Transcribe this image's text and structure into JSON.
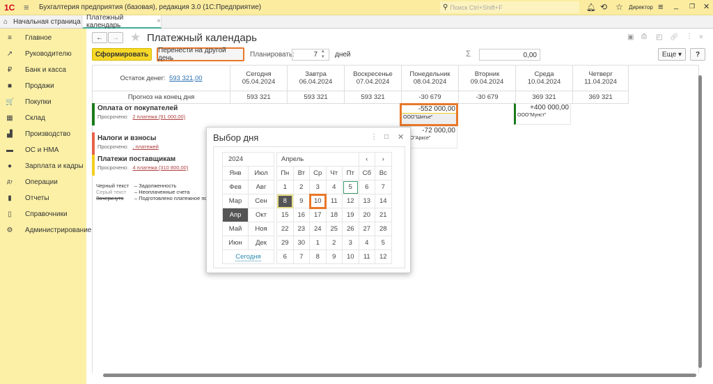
{
  "app": {
    "title": "Бухгалтерия предприятия (базовая), редакция 3.0  (1С:Предприятие)",
    "search_placeholder": "Поиск Ctrl+Shift+F",
    "user": "Директор"
  },
  "tabs": [
    {
      "label": "Начальная страница"
    },
    {
      "label": "Платежный календарь"
    }
  ],
  "sidebar": {
    "items": [
      {
        "label": "Главное",
        "icon": "≡"
      },
      {
        "label": "Руководителю",
        "icon": "↗"
      },
      {
        "label": "Банк и касса",
        "icon": "₽"
      },
      {
        "label": "Продажи",
        "icon": "■"
      },
      {
        "label": "Покупки",
        "icon": "🛒"
      },
      {
        "label": "Склад",
        "icon": "▦"
      },
      {
        "label": "Производство",
        "icon": "▟"
      },
      {
        "label": "ОС и НМА",
        "icon": "▬"
      },
      {
        "label": "Зарплата и кадры",
        "icon": "●"
      },
      {
        "label": "Операции",
        "icon": "Дт"
      },
      {
        "label": "Отчеты",
        "icon": "▮"
      },
      {
        "label": "Справочники",
        "icon": "▯"
      },
      {
        "label": "Администрирование",
        "icon": "⚙"
      }
    ]
  },
  "page": {
    "title": "Платежный календарь",
    "generate": "Сформировать",
    "move": "Перенести на другой день",
    "plan_label": "Планировать:",
    "plan_value": "7",
    "plan_unit": "дней",
    "sum_value": "0,00",
    "more": "Еще",
    "help": "?"
  },
  "table": {
    "balance_label": "Остаток денег:",
    "balance_value": "593 321,00",
    "forecast_label": "Прогноз на конец дня",
    "days": [
      {
        "name": "Сегодня",
        "date": "05.04.2024",
        "forecast": "593 321",
        "neg": false
      },
      {
        "name": "Завтра",
        "date": "06.04.2024",
        "forecast": "593 321",
        "neg": false
      },
      {
        "name": "Воскресенье",
        "date": "07.04.2024",
        "forecast": "593 321",
        "neg": false
      },
      {
        "name": "Понедельник",
        "date": "08.04.2024",
        "forecast": "-30 679",
        "neg": true
      },
      {
        "name": "Вторник",
        "date": "09.04.2024",
        "forecast": "-30 679",
        "neg": true
      },
      {
        "name": "Среда",
        "date": "10.04.2024",
        "forecast": "369 321",
        "neg": false
      },
      {
        "name": "Четверг",
        "date": "11.04.2024",
        "forecast": "369 321",
        "neg": false
      }
    ],
    "groups": [
      {
        "title": "Оплата от покупателей",
        "overdue_label": "Просрочено:",
        "overdue": "2 платежа (91 000,00)",
        "color": "#1a7a1a"
      },
      {
        "title": "Налоги и взносы",
        "overdue_label": "Просрочено:",
        "overdue": ", платежей",
        "color": "#e8614a"
      },
      {
        "title": "Платежи поставщикам",
        "overdue_label": "Просрочено:",
        "overdue": "4 платежа (310 800,00)",
        "color": "#f2cf1f"
      }
    ],
    "payments": [
      {
        "amount": "-552 000,00",
        "party": "ООО\"Шитье\""
      },
      {
        "amount": "-72 000,00",
        "party": "ООО\"Арксе\""
      },
      {
        "amount": "+400 000,00",
        "party": "ООО\"Мунст\""
      }
    ],
    "legend": [
      {
        "key": "Черный текст",
        "desc": "–  Задолженность"
      },
      {
        "key": "Серый текст",
        "desc": "–  Неоплаченные счета"
      },
      {
        "key": "Зачеркнуто",
        "desc": "–  Подготовлено платежное поруч"
      }
    ]
  },
  "dialog": {
    "title": "Выбор дня",
    "year": "2024",
    "month": "Апрель",
    "today": "Сегодня",
    "months": [
      [
        "Янв",
        "Июл"
      ],
      [
        "Фев",
        "Авг"
      ],
      [
        "Мар",
        "Сен"
      ],
      [
        "Апр",
        "Окт"
      ],
      [
        "Май",
        "Ноя"
      ],
      [
        "Июн",
        "Дек"
      ]
    ],
    "weekdays": [
      "Пн",
      "Вт",
      "Ср",
      "Чт",
      "Пт",
      "Сб",
      "Вс"
    ],
    "weeks": [
      [
        "1",
        "2",
        "3",
        "4",
        "5",
        "6",
        "7"
      ],
      [
        "8",
        "9",
        "10",
        "11",
        "12",
        "13",
        "14"
      ],
      [
        "15",
        "16",
        "17",
        "18",
        "19",
        "20",
        "21"
      ],
      [
        "22",
        "23",
        "24",
        "25",
        "26",
        "27",
        "28"
      ],
      [
        "29",
        "30",
        "1",
        "2",
        "3",
        "4",
        "5"
      ],
      [
        "6",
        "7",
        "8",
        "9",
        "10",
        "11",
        "12"
      ]
    ]
  }
}
